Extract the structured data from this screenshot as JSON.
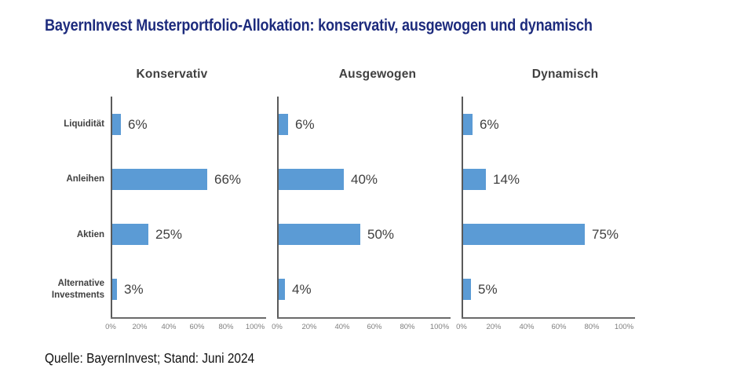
{
  "title": "BayernInvest Musterportfolio-Allokation: konservativ, ausgewogen und dynamisch",
  "source": "Quelle: BayernInvest; Stand: Juni 2024",
  "colors": {
    "title": "#1d2b7d",
    "bar": "#5b9bd5",
    "axis": "#5a5a5a",
    "tick_label": "#7f7f7f",
    "category_label": "#404040",
    "value_label": "#3f3f3f",
    "chart_title": "#404040",
    "background": "#ffffff"
  },
  "chart_data": {
    "type": "bar",
    "orientation": "horizontal",
    "title": "BayernInvest Musterportfolio-Allokation: konservativ, ausgewogen und dynamisch",
    "categories": [
      "Liquidität",
      "Anleihen",
      "Aktien",
      "Alternative Investments"
    ],
    "series": [
      {
        "name": "Konservativ",
        "values": [
          6,
          66,
          25,
          3
        ]
      },
      {
        "name": "Ausgewogen",
        "values": [
          6,
          40,
          50,
          4
        ]
      },
      {
        "name": "Dynamisch",
        "values": [
          6,
          14,
          75,
          5
        ]
      }
    ],
    "data_labels": true,
    "data_label_suffix": "%",
    "xlim": [
      0,
      100
    ],
    "x_tick_labels": [
      "0%",
      "20%",
      "40%",
      "60%",
      "80%",
      "100%"
    ],
    "grid": false,
    "legend": "none",
    "source": "Quelle: BayernInvest; Stand: Juni 2024"
  }
}
